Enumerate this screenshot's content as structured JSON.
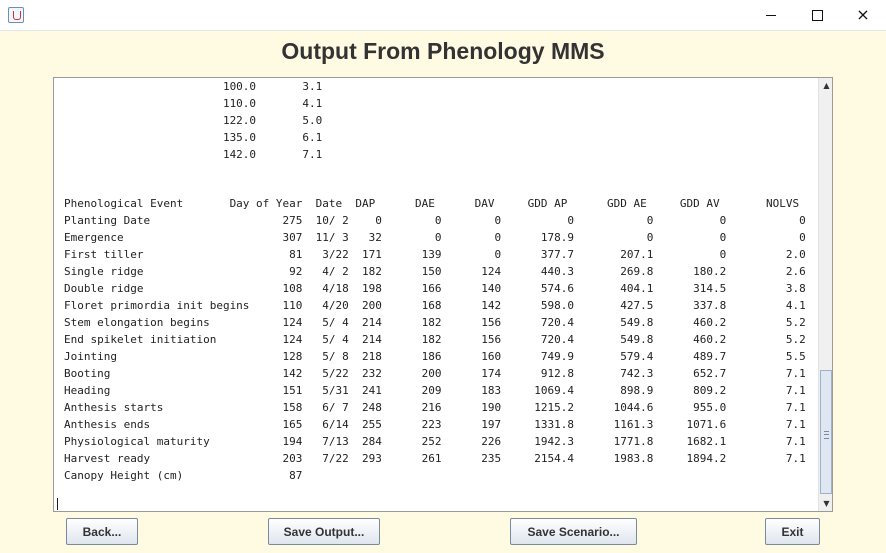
{
  "window": {
    "app_icon": "java-cup-icon",
    "minimize_symbol": "minimize-icon",
    "maximize_symbol": "maximize-icon",
    "close_symbol": "×"
  },
  "heading": "Output From Phenology MMS",
  "output": {
    "top_table": [
      "                        100.0       3.1",
      "                        110.0       4.1",
      "                        122.0       5.0",
      "                        135.0       6.1",
      "                        142.0       7.1"
    ],
    "main_table": [
      "Phenological Event       Day of Year  Date  DAP      DAE      DAV     GDD AP      GDD AE     GDD AV       NOLVS",
      "Planting Date                    275  10/ 2    0        0        0          0           0          0           0",
      "Emergence                        307  11/ 3   32        0        0      178.9           0          0           0",
      "First tiller                      81   3/22  171      139        0      377.7       207.1          0         2.0",
      "Single ridge                      92   4/ 2  182      150      124      440.3       269.8      180.2         2.6",
      "Double ridge                     108   4/18  198      166      140      574.6       404.1      314.5         3.8",
      "Floret primordia init begins     110   4/20  200      168      142      598.0       427.5      337.8         4.1",
      "Stem elongation begins           124   5/ 4  214      182      156      720.4       549.8      460.2         5.2",
      "End spikelet initiation          124   5/ 4  214      182      156      720.4       549.8      460.2         5.2",
      "Jointing                         128   5/ 8  218      186      160      749.9       579.4      489.7         5.5",
      "Booting                          142   5/22  232      200      174      912.8       742.3      652.7         7.1",
      "Heading                          151   5/31  241      209      183     1069.4       898.9      809.2         7.1",
      "Anthesis starts                  158   6/ 7  248      216      190     1215.2      1044.6      955.0         7.1",
      "Anthesis ends                    165   6/14  255      223      197     1331.8      1161.3     1071.6         7.1",
      "Physiological maturity           194   7/13  284      252      226     1942.3      1771.8     1682.1         7.1",
      "Harvest ready                    203   7/22  293      261      235     2154.4      1983.8     1894.2         7.1",
      "Canopy Height (cm)                87"
    ]
  },
  "scrollbar": {
    "up_arrow": "▲",
    "down_arrow": "▼",
    "position_fraction": 0.72
  },
  "buttons": {
    "back": "Back...",
    "save_output": "Save Output...",
    "save_scenario": "Save Scenario...",
    "exit": "Exit"
  }
}
